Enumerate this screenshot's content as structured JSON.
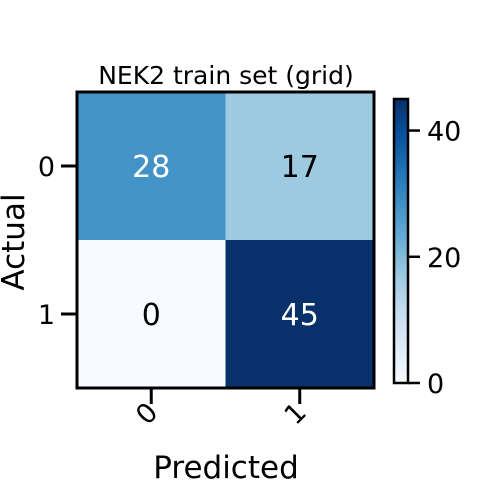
{
  "chart_data": {
    "type": "heatmap",
    "title": "NEK2 train set (grid)",
    "xlabel": "Predicted",
    "ylabel": "Actual",
    "x_categories": [
      "0",
      "1"
    ],
    "y_categories": [
      "0",
      "1"
    ],
    "values": [
      [
        28,
        17
      ],
      [
        0,
        45
      ]
    ],
    "colormap": "Blues",
    "color_range": [
      0,
      45
    ],
    "colorbar_ticks": [
      "0",
      "20",
      "40"
    ],
    "colorbar_tick_values": [
      0,
      20,
      40
    ],
    "grid": false,
    "legend": "colorbar-right"
  }
}
